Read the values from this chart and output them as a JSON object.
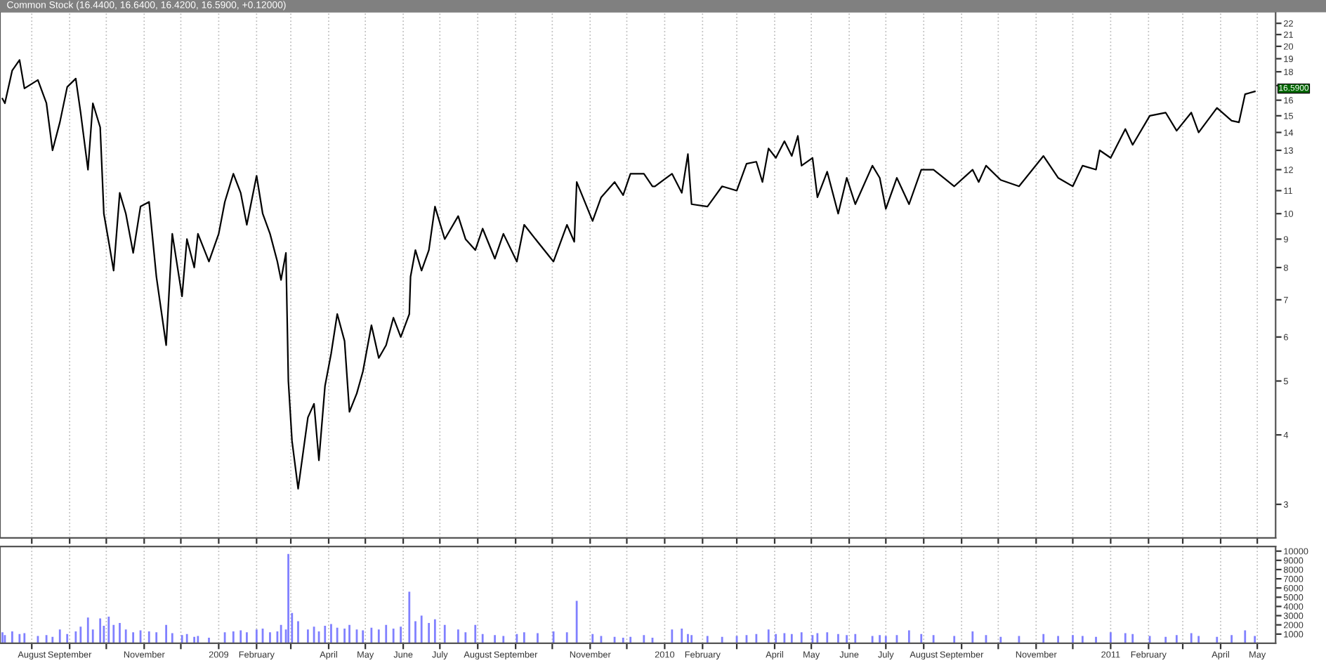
{
  "chart_data": [
    {
      "type": "line",
      "title": "Common Stock (16.4400, 16.6400, 16.4200, 16.5900, +0.12000)",
      "log": true,
      "grid": "x",
      "tick_labels": "y",
      "x": [
        "2008-07-08",
        "2008-07-10",
        "2008-07-16",
        "2008-07-22",
        "2008-07-26",
        "2008-08-06",
        "2008-08-13",
        "2008-08-18",
        "2008-08-24",
        "2008-08-30",
        "2008-09-06",
        "2008-09-10",
        "2008-09-16",
        "2008-09-20",
        "2008-09-26",
        "2008-09-29",
        "2008-10-03",
        "2008-10-07",
        "2008-10-12",
        "2008-10-17",
        "2008-10-23",
        "2008-10-29",
        "2008-11-05",
        "2008-11-11",
        "2008-11-19",
        "2008-11-24",
        "2008-12-02",
        "2008-12-06",
        "2008-12-12",
        "2008-12-15",
        "2008-12-24",
        "2009-01-01",
        "2009-01-06",
        "2009-01-13",
        "2009-01-19",
        "2009-01-24",
        "2009-02-01",
        "2009-02-06",
        "2009-02-12",
        "2009-02-18",
        "2009-02-21",
        "2009-02-25",
        "2009-02-27",
        "2009-03-02",
        "2009-03-07",
        "2009-03-15",
        "2009-03-20",
        "2009-03-24",
        "2009-03-29",
        "2009-04-03",
        "2009-04-08",
        "2009-04-14",
        "2009-04-18",
        "2009-04-24",
        "2009-04-29",
        "2009-05-06",
        "2009-05-12",
        "2009-05-18",
        "2009-05-24",
        "2009-05-30",
        "2009-06-06",
        "2009-06-07",
        "2009-06-11",
        "2009-06-16",
        "2009-06-22",
        "2009-06-27",
        "2009-07-05",
        "2009-07-16",
        "2009-07-22",
        "2009-07-30",
        "2009-08-05",
        "2009-08-15",
        "2009-08-22",
        "2009-09-02",
        "2009-09-08",
        "2009-09-19",
        "2009-10-02",
        "2009-10-13",
        "2009-10-19",
        "2009-10-21",
        "2009-11-03",
        "2009-11-10",
        "2009-11-21",
        "2009-11-28",
        "2009-12-04",
        "2009-12-15",
        "2009-12-22",
        "2009-12-24",
        "2010-01-07",
        "2010-01-15",
        "2010-01-20",
        "2010-01-23",
        "2010-02-05",
        "2010-02-17",
        "2010-03-01",
        "2010-03-09",
        "2010-03-17",
        "2010-03-22",
        "2010-03-27",
        "2010-04-02",
        "2010-04-09",
        "2010-04-15",
        "2010-04-20",
        "2010-04-23",
        "2010-05-02",
        "2010-05-06",
        "2010-05-14",
        "2010-05-23",
        "2010-05-30",
        "2010-06-06",
        "2010-06-20",
        "2010-06-26",
        "2010-07-01",
        "2010-07-10",
        "2010-07-20",
        "2010-07-30",
        "2010-08-09",
        "2010-08-26",
        "2010-09-10",
        "2010-09-15",
        "2010-09-21",
        "2010-10-03",
        "2010-10-18",
        "2010-11-07",
        "2010-11-19",
        "2010-12-01",
        "2010-12-09",
        "2010-12-20",
        "2010-12-23",
        "2011-01-01",
        "2011-01-13",
        "2011-01-19",
        "2011-02-02",
        "2011-02-15",
        "2011-02-24",
        "2011-03-08",
        "2011-03-14",
        "2011-03-29",
        "2011-04-10",
        "2011-04-16",
        "2011-04-21",
        "2011-04-29"
      ],
      "series": [
        {
          "color": "#000000",
          "values": [
            16.1,
            15.8,
            18.1,
            18.9,
            16.8,
            17.4,
            15.8,
            13.0,
            14.6,
            16.9,
            17.5,
            15.2,
            12.0,
            15.8,
            14.3,
            10.0,
            8.9,
            7.9,
            10.9,
            10.0,
            8.5,
            10.3,
            10.5,
            7.7,
            5.8,
            9.2,
            7.1,
            9.0,
            8.0,
            9.2,
            8.2,
            9.2,
            10.5,
            11.8,
            10.9,
            9.55,
            11.7,
            10.0,
            9.2,
            8.2,
            7.6,
            8.5,
            5.0,
            3.9,
            3.2,
            4.3,
            4.55,
            3.6,
            4.9,
            5.6,
            6.6,
            5.9,
            4.4,
            4.75,
            5.2,
            6.3,
            5.5,
            5.8,
            6.5,
            6.0,
            6.6,
            7.7,
            8.6,
            7.9,
            8.6,
            10.3,
            9.0,
            9.9,
            9.0,
            8.6,
            9.4,
            8.3,
            9.2,
            8.2,
            9.55,
            8.9,
            8.2,
            9.55,
            8.9,
            11.4,
            9.7,
            10.7,
            11.4,
            10.8,
            11.8,
            11.8,
            11.2,
            11.2,
            11.8,
            10.9,
            12.8,
            10.4,
            10.3,
            11.2,
            11.0,
            12.3,
            12.4,
            11.4,
            13.1,
            12.6,
            13.5,
            12.7,
            13.8,
            12.2,
            12.6,
            10.7,
            11.9,
            10.0,
            11.6,
            10.4,
            12.2,
            11.6,
            10.2,
            11.6,
            10.4,
            12.0,
            12.0,
            11.2,
            12.0,
            11.4,
            12.2,
            11.5,
            11.2,
            12.7,
            11.6,
            11.2,
            12.2,
            12.0,
            13.0,
            12.6,
            14.2,
            13.3,
            15.0,
            15.2,
            14.1,
            15.2,
            14.0,
            15.5,
            14.7,
            14.6,
            16.4,
            16.59
          ]
        }
      ],
      "xlim": [
        "2008-07-06",
        "2011-05-16"
      ],
      "xticks": [
        {
          "value": "2008-08-01",
          "label": null
        },
        {
          "value": "2008-09-01",
          "label": null
        },
        {
          "value": "2008-10-01",
          "label": null
        },
        {
          "value": "2008-11-01",
          "label": null
        },
        {
          "value": "2008-12-01",
          "label": null
        },
        {
          "value": "2009-01-01",
          "label": null
        },
        {
          "value": "2009-02-01",
          "label": null
        },
        {
          "value": "2009-03-01",
          "label": null
        },
        {
          "value": "2009-04-01",
          "label": null
        },
        {
          "value": "2009-05-01",
          "label": null
        },
        {
          "value": "2009-06-01",
          "label": null
        },
        {
          "value": "2009-07-01",
          "label": null
        },
        {
          "value": "2009-08-01",
          "label": null
        },
        {
          "value": "2009-09-01",
          "label": null
        },
        {
          "value": "2009-10-01",
          "label": null
        },
        {
          "value": "2009-11-01",
          "label": null
        },
        {
          "value": "2009-12-01",
          "label": null
        },
        {
          "value": "2010-01-01",
          "label": null
        },
        {
          "value": "2010-02-01",
          "label": null
        },
        {
          "value": "2010-03-01",
          "label": null
        },
        {
          "value": "2010-04-01",
          "label": null
        },
        {
          "value": "2010-05-01",
          "label": null
        },
        {
          "value": "2010-06-01",
          "label": null
        },
        {
          "value": "2010-07-01",
          "label": null
        },
        {
          "value": "2010-08-01",
          "label": null
        },
        {
          "value": "2010-09-01",
          "label": null
        },
        {
          "value": "2010-10-01",
          "label": null
        },
        {
          "value": "2010-11-01",
          "label": null
        },
        {
          "value": "2010-12-01",
          "label": null
        },
        {
          "value": "2011-01-01",
          "label": null
        },
        {
          "value": "2011-02-01",
          "label": null
        },
        {
          "value": "2011-03-01",
          "label": null
        },
        {
          "value": "2011-04-01",
          "label": null
        },
        {
          "value": "2011-05-01",
          "label": null
        }
      ],
      "ylim": [
        2.61,
        23.1
      ],
      "yticks": [
        3,
        4,
        5,
        6,
        7,
        8,
        9,
        10,
        11,
        12,
        13,
        14,
        15,
        16,
        {
          "value": 17,
          "label": null
        },
        18,
        19,
        20,
        21,
        22
      ],
      "annotations": [
        "16.5900"
      ]
    },
    {
      "type": "bar",
      "grid": "x",
      "color": "#8080ff",
      "x": [
        "2008-07-08",
        "2008-07-10",
        "2008-07-16",
        "2008-07-22",
        "2008-07-26",
        "2008-08-06",
        "2008-08-13",
        "2008-08-18",
        "2008-08-24",
        "2008-08-30",
        "2008-09-06",
        "2008-09-10",
        "2008-09-16",
        "2008-09-20",
        "2008-09-26",
        "2008-09-29",
        "2008-10-03",
        "2008-10-07",
        "2008-10-12",
        "2008-10-17",
        "2008-10-23",
        "2008-10-29",
        "2008-11-05",
        "2008-11-11",
        "2008-11-19",
        "2008-11-24",
        "2008-12-02",
        "2008-12-06",
        "2008-12-12",
        "2008-12-15",
        "2008-12-24",
        "2009-01-06",
        "2009-01-13",
        "2009-01-19",
        "2009-01-24",
        "2009-02-01",
        "2009-02-06",
        "2009-02-12",
        "2009-02-18",
        "2009-02-21",
        "2009-02-25",
        "2009-02-27",
        "2009-03-02",
        "2009-03-07",
        "2009-03-15",
        "2009-03-20",
        "2009-03-24",
        "2009-03-29",
        "2009-04-03",
        "2009-04-08",
        "2009-04-14",
        "2009-04-18",
        "2009-04-24",
        "2009-04-29",
        "2009-05-06",
        "2009-05-12",
        "2009-05-18",
        "2009-05-24",
        "2009-05-30",
        "2009-06-06",
        "2009-06-11",
        "2009-06-16",
        "2009-06-22",
        "2009-06-27",
        "2009-07-05",
        "2009-07-16",
        "2009-07-22",
        "2009-07-30",
        "2009-08-05",
        "2009-08-15",
        "2009-08-22",
        "2009-09-02",
        "2009-09-08",
        "2009-09-19",
        "2009-10-02",
        "2009-10-13",
        "2009-10-21",
        "2009-11-03",
        "2009-11-10",
        "2009-11-21",
        "2009-11-28",
        "2009-12-04",
        "2009-12-15",
        "2009-12-22",
        "2010-01-07",
        "2010-01-15",
        "2010-01-20",
        "2010-01-23",
        "2010-02-05",
        "2010-02-17",
        "2010-03-01",
        "2010-03-09",
        "2010-03-17",
        "2010-03-27",
        "2010-04-02",
        "2010-04-09",
        "2010-04-15",
        "2010-04-23",
        "2010-05-02",
        "2010-05-06",
        "2010-05-14",
        "2010-05-23",
        "2010-05-30",
        "2010-06-06",
        "2010-06-20",
        "2010-06-26",
        "2010-07-01",
        "2010-07-10",
        "2010-07-20",
        "2010-07-30",
        "2010-08-09",
        "2010-08-26",
        "2010-09-10",
        "2010-09-21",
        "2010-10-03",
        "2010-10-18",
        "2010-11-07",
        "2010-11-19",
        "2010-12-01",
        "2010-12-09",
        "2010-12-20",
        "2011-01-01",
        "2011-01-13",
        "2011-01-19",
        "2011-02-02",
        "2011-02-15",
        "2011-02-24",
        "2011-03-08",
        "2011-03-14",
        "2011-03-29",
        "2011-04-10",
        "2011-04-21",
        "2011-04-29"
      ],
      "values": [
        1200,
        900,
        1300,
        1000,
        1100,
        800,
        900,
        700,
        1500,
        1000,
        1300,
        1800,
        2800,
        1500,
        2700,
        1900,
        2900,
        2000,
        2200,
        1500,
        1200,
        1400,
        1300,
        1200,
        2000,
        1100,
        900,
        1000,
        700,
        800,
        600,
        1200,
        1300,
        1400,
        1200,
        1500,
        1600,
        1200,
        1300,
        2000,
        1500,
        9700,
        3300,
        2400,
        1500,
        1800,
        1300,
        1900,
        2100,
        1700,
        1600,
        2000,
        1500,
        1400,
        1700,
        1500,
        2000,
        1600,
        1800,
        5600,
        2400,
        3000,
        2200,
        2600,
        2000,
        1500,
        1200,
        2000,
        1000,
        900,
        800,
        1000,
        1200,
        1100,
        1300,
        1200,
        4600,
        1000,
        800,
        700,
        600,
        700,
        900,
        600,
        1500,
        1600,
        1000,
        900,
        800,
        700,
        800,
        900,
        1000,
        1500,
        1000,
        1100,
        1000,
        1200,
        900,
        1100,
        1200,
        1000,
        900,
        1000,
        800,
        900,
        800,
        900,
        1400,
        1000,
        900,
        800,
        1300,
        900,
        700,
        800,
        1000,
        800,
        900,
        800,
        700,
        1200,
        1100,
        1000,
        800,
        700,
        900,
        1100,
        800,
        700,
        900,
        1400,
        800
      ],
      "xlim": [
        "2008-07-06",
        "2011-05-16"
      ],
      "xticks": [
        {
          "value": "2008-08-01",
          "label": "August"
        },
        {
          "value": "2008-09-01",
          "label": "September"
        },
        {
          "value": "2008-10-01",
          "label": null
        },
        {
          "value": "2008-11-01",
          "label": "November"
        },
        {
          "value": "2008-12-01",
          "label": null
        },
        {
          "value": "2009-01-01",
          "label": "2009"
        },
        {
          "value": "2009-02-01",
          "label": "February"
        },
        {
          "value": "2009-03-01",
          "label": null
        },
        {
          "value": "2009-04-01",
          "label": "April"
        },
        {
          "value": "2009-05-01",
          "label": "May"
        },
        {
          "value": "2009-06-01",
          "label": "June"
        },
        {
          "value": "2009-07-01",
          "label": "July"
        },
        {
          "value": "2009-08-01",
          "label": "August"
        },
        {
          "value": "2009-09-01",
          "label": "September"
        },
        {
          "value": "2009-10-01",
          "label": null
        },
        {
          "value": "2009-11-01",
          "label": "November"
        },
        {
          "value": "2009-12-01",
          "label": null
        },
        {
          "value": "2010-01-01",
          "label": "2010"
        },
        {
          "value": "2010-02-01",
          "label": "February"
        },
        {
          "value": "2010-03-01",
          "label": null
        },
        {
          "value": "2010-04-01",
          "label": "April"
        },
        {
          "value": "2010-05-01",
          "label": "May"
        },
        {
          "value": "2010-06-01",
          "label": "June"
        },
        {
          "value": "2010-07-01",
          "label": "July"
        },
        {
          "value": "2010-08-01",
          "label": "August"
        },
        {
          "value": "2010-09-01",
          "label": "September"
        },
        {
          "value": "2010-10-01",
          "label": null
        },
        {
          "value": "2010-11-01",
          "label": "November"
        },
        {
          "value": "2010-12-01",
          "label": null
        },
        {
          "value": "2011-01-01",
          "label": "2011"
        },
        {
          "value": "2011-02-01",
          "label": "February"
        },
        {
          "value": "2011-03-01",
          "label": null
        },
        {
          "value": "2011-04-01",
          "label": "April"
        },
        {
          "value": "2011-05-01",
          "label": "May"
        }
      ],
      "ylim": [
        0,
        10500
      ],
      "yticks": [
        1000,
        2000,
        3000,
        4000,
        5000,
        6000,
        7000,
        8000,
        9000,
        10000
      ]
    }
  ]
}
